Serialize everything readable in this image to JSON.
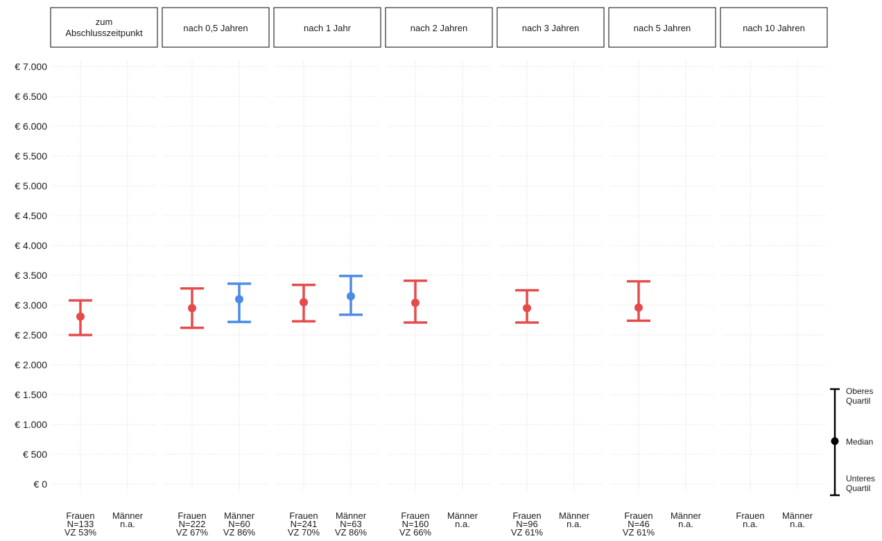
{
  "chart_data": {
    "type": "errorbar",
    "ylim": [
      0,
      7000
    ],
    "y_ticks": [
      0,
      500,
      1000,
      1500,
      2000,
      2500,
      3000,
      3500,
      4000,
      4500,
      5000,
      5500,
      6000,
      6500,
      7000
    ],
    "y_tick_labels": [
      "€ 0",
      "€ 500",
      "€ 1.000",
      "€ 1.500",
      "€ 2.000",
      "€ 2.500",
      "€ 3.000",
      "€ 3.500",
      "€ 4.000",
      "€ 4.500",
      "€ 5.000",
      "€ 5.500",
      "€ 6.000",
      "€ 6.500",
      "€ 7.000"
    ],
    "grid": true,
    "colors": {
      "Frauen": "#e64b4b",
      "Männer": "#4d8be6"
    },
    "panels": [
      {
        "title": [
          "zum",
          "Abschlusszeitpunkt"
        ],
        "groups": [
          {
            "label": [
              "Frauen",
              "N=133",
              "VZ 53%"
            ],
            "series": "Frauen",
            "median": 2810,
            "q1": 2500,
            "q3": 3080
          },
          {
            "label": [
              "Männer",
              "n.a."
            ],
            "series": "Männer"
          }
        ]
      },
      {
        "title": [
          "nach 0,5 Jahren"
        ],
        "groups": [
          {
            "label": [
              "Frauen",
              "N=222",
              "VZ 67%"
            ],
            "series": "Frauen",
            "median": 2950,
            "q1": 2620,
            "q3": 3280
          },
          {
            "label": [
              "Männer",
              "N=60",
              "VZ 86%"
            ],
            "series": "Männer",
            "median": 3100,
            "q1": 2720,
            "q3": 3360
          }
        ]
      },
      {
        "title": [
          "nach 1 Jahr"
        ],
        "groups": [
          {
            "label": [
              "Frauen",
              "N=241",
              "VZ 70%"
            ],
            "series": "Frauen",
            "median": 3050,
            "q1": 2730,
            "q3": 3340
          },
          {
            "label": [
              "Männer",
              "N=63",
              "VZ 86%"
            ],
            "series": "Männer",
            "median": 3150,
            "q1": 2840,
            "q3": 3490
          }
        ]
      },
      {
        "title": [
          "nach 2 Jahren"
        ],
        "groups": [
          {
            "label": [
              "Frauen",
              "N=160",
              "VZ 66%"
            ],
            "series": "Frauen",
            "median": 3040,
            "q1": 2710,
            "q3": 3410
          },
          {
            "label": [
              "Männer",
              "n.a."
            ],
            "series": "Männer"
          }
        ]
      },
      {
        "title": [
          "nach 3 Jahren"
        ],
        "groups": [
          {
            "label": [
              "Frauen",
              "N=96",
              "VZ 61%"
            ],
            "series": "Frauen",
            "median": 2950,
            "q1": 2710,
            "q3": 3250
          },
          {
            "label": [
              "Männer",
              "n.a."
            ],
            "series": "Männer"
          }
        ]
      },
      {
        "title": [
          "nach 5 Jahren"
        ],
        "groups": [
          {
            "label": [
              "Frauen",
              "N=46",
              "VZ 61%"
            ],
            "series": "Frauen",
            "median": 2960,
            "q1": 2740,
            "q3": 3400
          },
          {
            "label": [
              "Männer",
              "n.a."
            ],
            "series": "Männer"
          }
        ]
      },
      {
        "title": [
          "nach 10 Jahren"
        ],
        "groups": [
          {
            "label": [
              "Frauen",
              "n.a."
            ],
            "series": "Frauen"
          },
          {
            "label": [
              "Männer",
              "n.a."
            ],
            "series": "Männer"
          }
        ]
      }
    ],
    "legend": {
      "placement": "bottom-right",
      "upper": [
        "Oberes",
        "Quartil"
      ],
      "median": [
        "Median"
      ],
      "lower": [
        "Unteres",
        "Quartil"
      ]
    }
  }
}
